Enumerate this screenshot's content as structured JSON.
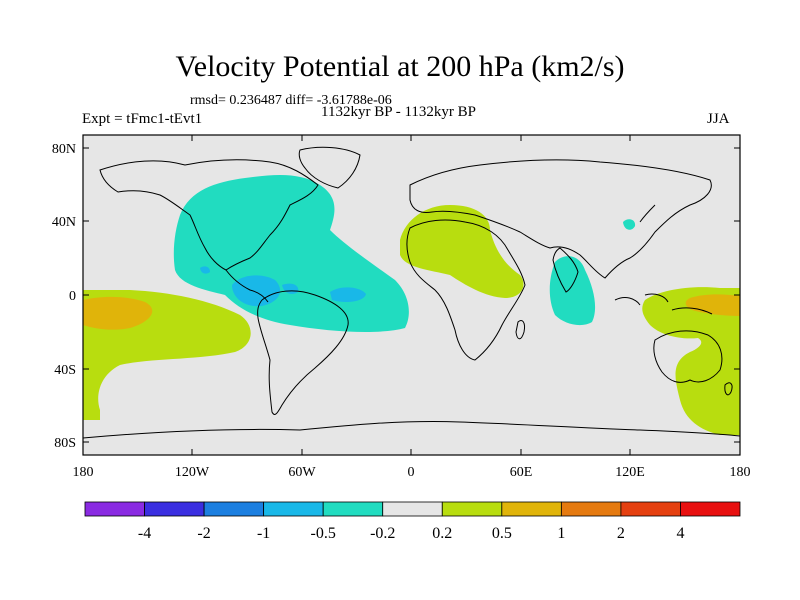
{
  "title": "Velocity Potential at 200 hPa (km2/s)",
  "stats": "rmsd= 0.236487 diff= -3.61788e-06",
  "experiment": "Expt = tFmc1-tEvt1",
  "period": "1132kyr BP - 1132kyr BP",
  "season": "JJA",
  "lat_labels": [
    "80N",
    "40N",
    "0",
    "40S",
    "80S"
  ],
  "lon_labels": [
    "180",
    "120W",
    "60W",
    "0",
    "60E",
    "120E",
    "180"
  ],
  "colorbar": {
    "labels": [
      "-4",
      "-2",
      "-1",
      "-0.5",
      "-0.2",
      "0.2",
      "0.5",
      "1",
      "2",
      "4"
    ],
    "colors": [
      "#8a2be2",
      "#3a2ee0",
      "#1c7fe0",
      "#19b8e8",
      "#21dcc0",
      "#e6e6e6",
      "#b8dd0f",
      "#e0b40a",
      "#e57a10",
      "#e54010",
      "#e81010"
    ]
  },
  "colors": {
    "background": "#e6e6e6",
    "neg_weak": "#21dcc0",
    "neg_mid": "#19b8e8",
    "pos_weak": "#b8dd0f",
    "pos_mid": "#e0b40a"
  }
}
